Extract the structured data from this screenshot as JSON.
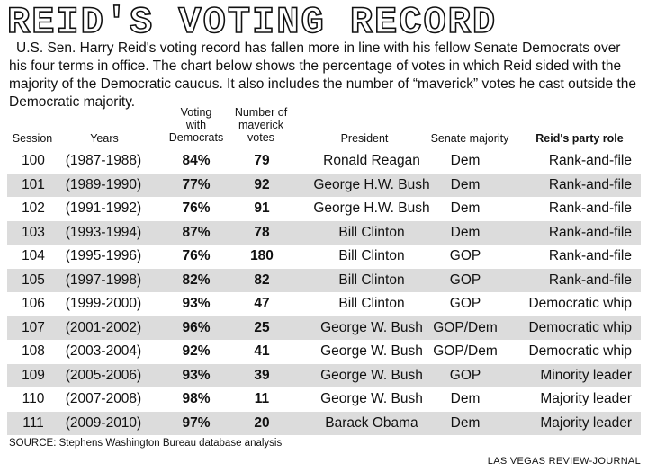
{
  "header": {
    "title": "REID'S VOTING RECORD",
    "intro": "U.S. Sen. Harry Reid's voting record has fallen more in line with his fellow Senate Democrats over his four terms in office. The chart below shows the percentage of votes in which Reid sided with the majority of the Democratic caucus. It also includes the number of “maverick” votes he cast outside the Democratic majority."
  },
  "columns": {
    "session": "Session",
    "years": "Years",
    "voting_1": "Voting",
    "voting_2": "with",
    "voting_3": "Democrats",
    "maverick_1": "Number of",
    "maverick_2": "maverick",
    "maverick_3": "votes",
    "president": "President",
    "senate": "Senate majority",
    "role": "Reid's party role"
  },
  "chart_data": {
    "type": "table",
    "title": "REID'S VOTING RECORD",
    "columns": [
      "Session",
      "Years",
      "Voting with Democrats",
      "Number of maverick votes",
      "President",
      "Senate majority",
      "Reid's party role"
    ],
    "rows": [
      {
        "session": "100",
        "years": "(1987-1988)",
        "pct": "84%",
        "maverick": "79",
        "president": "Ronald Reagan",
        "senate": "Dem",
        "role": "Rank-and-file"
      },
      {
        "session": "101",
        "years": "(1989-1990)",
        "pct": "77%",
        "maverick": "92",
        "president": "George H.W. Bush",
        "senate": "Dem",
        "role": "Rank-and-file"
      },
      {
        "session": "102",
        "years": "(1991-1992)",
        "pct": "76%",
        "maverick": "91",
        "president": "George H.W. Bush",
        "senate": "Dem",
        "role": "Rank-and-file"
      },
      {
        "session": "103",
        "years": "(1993-1994)",
        "pct": "87%",
        "maverick": "78",
        "president": "Bill Clinton",
        "senate": "Dem",
        "role": "Rank-and-file"
      },
      {
        "session": "104",
        "years": "(1995-1996)",
        "pct": "76%",
        "maverick": "180",
        "president": "Bill Clinton",
        "senate": "GOP",
        "role": "Rank-and-file"
      },
      {
        "session": "105",
        "years": "(1997-1998)",
        "pct": "82%",
        "maverick": "82",
        "president": "Bill Clinton",
        "senate": "GOP",
        "role": "Rank-and-file"
      },
      {
        "session": "106",
        "years": "(1999-2000)",
        "pct": "93%",
        "maverick": "47",
        "president": "Bill Clinton",
        "senate": "GOP",
        "role": "Democratic whip"
      },
      {
        "session": "107",
        "years": "(2001-2002)",
        "pct": "96%",
        "maverick": "25",
        "president": "George W. Bush",
        "senate": "GOP/Dem",
        "role": "Democratic whip"
      },
      {
        "session": "108",
        "years": "(2003-2004)",
        "pct": "92%",
        "maverick": "41",
        "president": "George W. Bush",
        "senate": "GOP/Dem",
        "role": "Democratic whip"
      },
      {
        "session": "109",
        "years": "(2005-2006)",
        "pct": "93%",
        "maverick": "39",
        "president": "George W. Bush",
        "senate": "GOP",
        "role": "Minority leader"
      },
      {
        "session": "110",
        "years": "(2007-2008)",
        "pct": "98%",
        "maverick": "11",
        "president": "George W. Bush",
        "senate": "Dem",
        "role": "Majority leader"
      },
      {
        "session": "111",
        "years": "(2009-2010)",
        "pct": "97%",
        "maverick": "20",
        "president": "Barack Obama",
        "senate": "Dem",
        "role": "Majority leader"
      }
    ]
  },
  "footer": {
    "source": "SOURCE: Stephens Washington Bureau database analysis",
    "credit": "LAS VEGAS REVIEW-JOURNAL"
  },
  "colors": {
    "shade": "#dcdcdc",
    "text": "#111111"
  }
}
